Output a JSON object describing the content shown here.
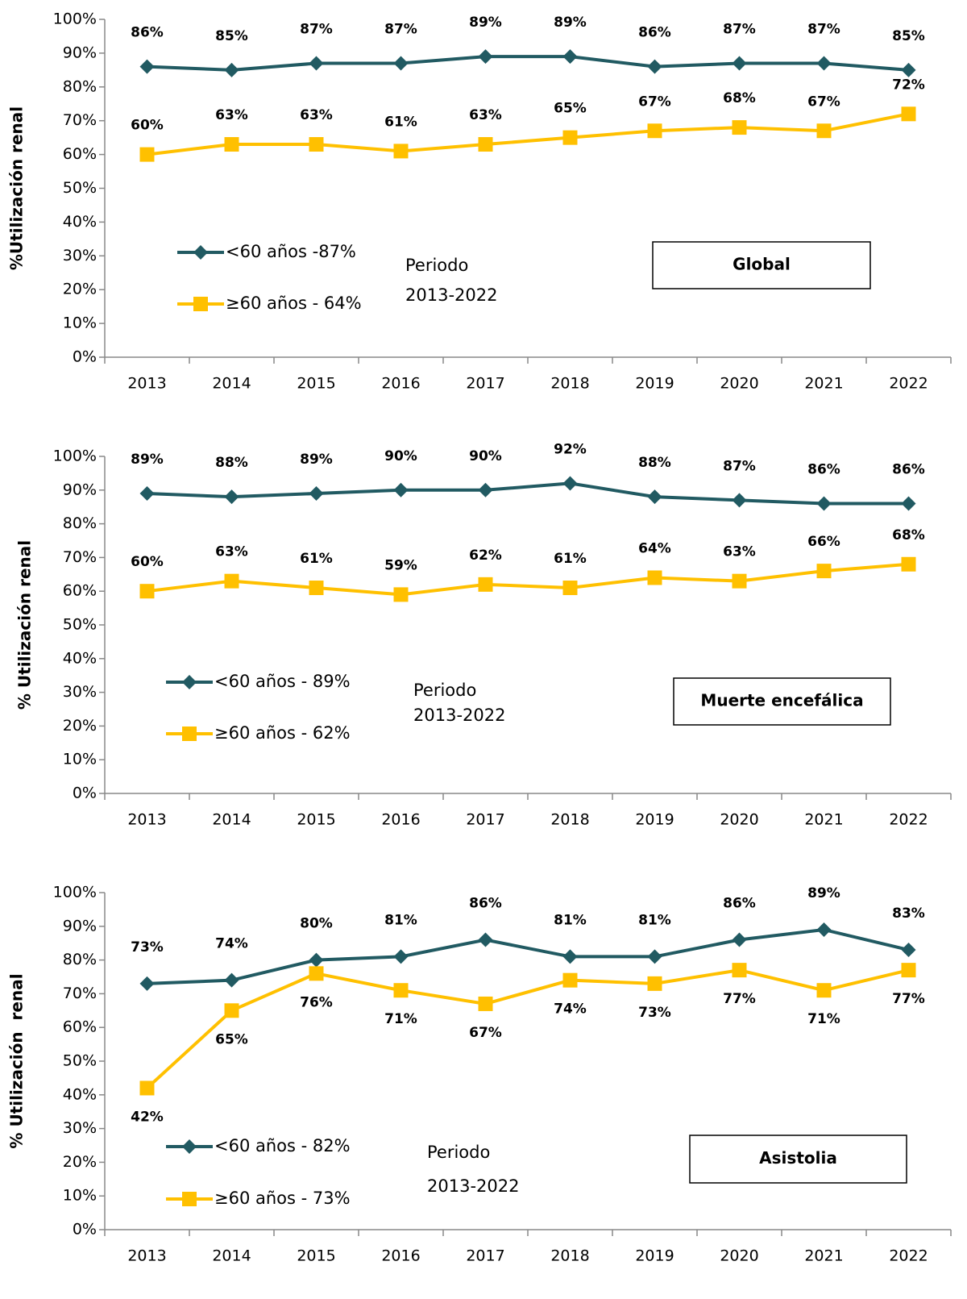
{
  "chart_data": [
    {
      "type": "line",
      "ylabel": "%Utilización renal",
      "box_label": "Global",
      "annotations": [
        "Periodo",
        "2013-2022"
      ],
      "categories": [
        "2013",
        "2014",
        "2015",
        "2016",
        "2017",
        "2018",
        "2019",
        "2020",
        "2021",
        "2022"
      ],
      "ylim": [
        0,
        100
      ],
      "yticks": [
        {
          "value": 0,
          "label": "0%"
        },
        {
          "value": 10,
          "label": "10%"
        },
        {
          "value": 20,
          "label": "20%"
        },
        {
          "value": 30,
          "label": "30%"
        },
        {
          "value": 40,
          "label": "40%"
        },
        {
          "value": 50,
          "label": "50%"
        },
        {
          "value": 60,
          "label": "60%"
        },
        {
          "value": 70,
          "label": "70%"
        },
        {
          "value": 80,
          "label": "80%"
        },
        {
          "value": 90,
          "label": "90%"
        },
        {
          "value": 100,
          "label": "100%"
        }
      ],
      "series": [
        {
          "name": "<60 años -87%",
          "color": "#215a62",
          "marker": "diamond",
          "values": [
            86,
            85,
            87,
            87,
            89,
            89,
            86,
            87,
            87,
            85
          ],
          "value_labels": [
            "86%",
            "85%",
            "87%",
            "87%",
            "89%",
            "89%",
            "86%",
            "87%",
            "87%",
            "85%"
          ]
        },
        {
          "name": "≥60 años - 64%",
          "color": "#ffc000",
          "marker": "square",
          "values": [
            60,
            63,
            63,
            61,
            63,
            65,
            67,
            68,
            67,
            72
          ],
          "value_labels": [
            "60%",
            "63%",
            "63%",
            "61%",
            "63%",
            "65%",
            "67%",
            "68%",
            "67%",
            "72%"
          ]
        }
      ]
    },
    {
      "type": "line",
      "ylabel": "% Utilización renal",
      "box_label": "Muerte encefálica",
      "annotations": [
        "Periodo",
        "2013-2022"
      ],
      "categories": [
        "2013",
        "2014",
        "2015",
        "2016",
        "2017",
        "2018",
        "2019",
        "2020",
        "2021",
        "2022"
      ],
      "ylim": [
        0,
        100
      ],
      "yticks": [
        {
          "value": 0,
          "label": "0%"
        },
        {
          "value": 10,
          "label": "10%"
        },
        {
          "value": 20,
          "label": "20%"
        },
        {
          "value": 30,
          "label": "30%"
        },
        {
          "value": 40,
          "label": "40%"
        },
        {
          "value": 50,
          "label": "50%"
        },
        {
          "value": 60,
          "label": "60%"
        },
        {
          "value": 70,
          "label": "70%"
        },
        {
          "value": 80,
          "label": "80%"
        },
        {
          "value": 90,
          "label": "90%"
        },
        {
          "value": 100,
          "label": "100%"
        }
      ],
      "series": [
        {
          "name": "<60 años - 89%",
          "color": "#215a62",
          "marker": "diamond",
          "values": [
            89,
            88,
            89,
            90,
            90,
            92,
            88,
            87,
            86,
            86
          ],
          "value_labels": [
            "89%",
            "88%",
            "89%",
            "90%",
            "90%",
            "92%",
            "88%",
            "87%",
            "86%",
            "86%"
          ]
        },
        {
          "name": "≥60 años - 62%",
          "color": "#ffc000",
          "marker": "square",
          "values": [
            60,
            63,
            61,
            59,
            62,
            61,
            64,
            63,
            66,
            68
          ],
          "value_labels": [
            "60%",
            "63%",
            "61%",
            "59%",
            "62%",
            "61%",
            "64%",
            "63%",
            "66%",
            "68%"
          ]
        }
      ]
    },
    {
      "type": "line",
      "ylabel": "% Utilización  renal",
      "box_label": "Asistolia",
      "annotations": [
        "Periodo",
        "2013-2022"
      ],
      "categories": [
        "2013",
        "2014",
        "2015",
        "2016",
        "2017",
        "2018",
        "2019",
        "2020",
        "2021",
        "2022"
      ],
      "ylim": [
        0,
        100
      ],
      "yticks": [
        {
          "value": 0,
          "label": "0%"
        },
        {
          "value": 10,
          "label": "10%"
        },
        {
          "value": 20,
          "label": "20%"
        },
        {
          "value": 30,
          "label": "30%"
        },
        {
          "value": 40,
          "label": "40%"
        },
        {
          "value": 50,
          "label": "50%"
        },
        {
          "value": 60,
          "label": "60%"
        },
        {
          "value": 70,
          "label": "70%"
        },
        {
          "value": 80,
          "label": "80%"
        },
        {
          "value": 90,
          "label": "90%"
        },
        {
          "value": 100,
          "label": "100%"
        }
      ],
      "series": [
        {
          "name": "<60 años - 82%",
          "color": "#215a62",
          "marker": "diamond",
          "values": [
            73,
            74,
            80,
            81,
            86,
            81,
            81,
            86,
            89,
            83
          ],
          "value_labels": [
            "73%",
            "74%",
            "80%",
            "81%",
            "86%",
            "81%",
            "81%",
            "86%",
            "89%",
            "83%"
          ]
        },
        {
          "name": "≥60 años - 73%",
          "color": "#ffc000",
          "marker": "square",
          "values": [
            42,
            65,
            76,
            71,
            67,
            74,
            73,
            77,
            71,
            77
          ],
          "value_labels": [
            "42%",
            "65%",
            "76%",
            "71%",
            "67%",
            "74%",
            "73%",
            "77%",
            "71%",
            "77%"
          ]
        }
      ]
    }
  ]
}
